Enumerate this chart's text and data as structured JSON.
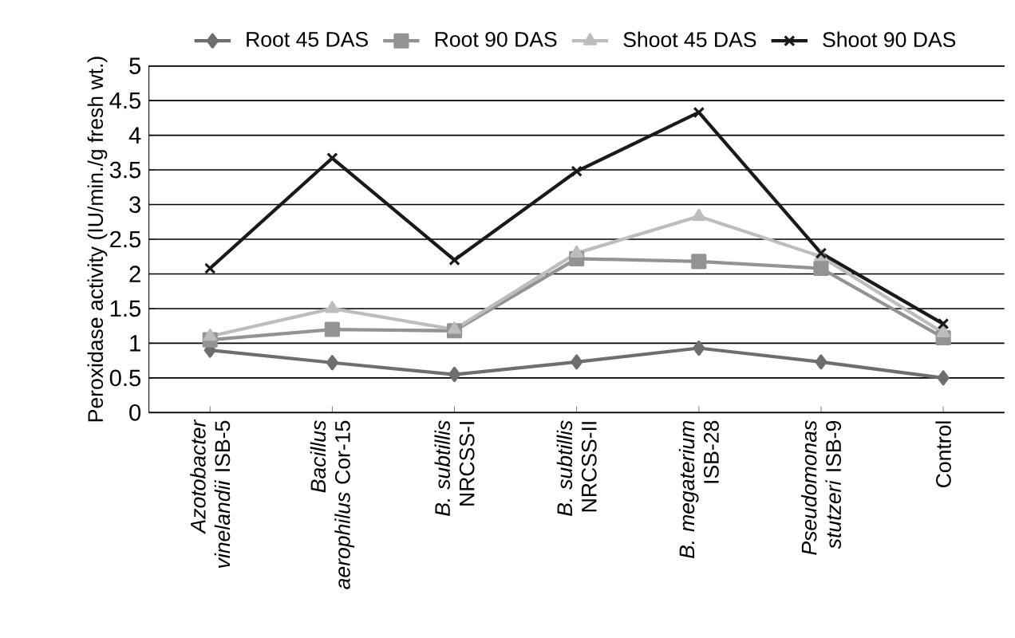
{
  "chart_data": {
    "type": "line",
    "ylabel": "Peroxidase activity (IU/min./g fresh wt.)",
    "categories": [
      "*Azotobacter vinelandii* ISB-5",
      "*Bacillus aerophilus* Cor-15",
      "*B. subtillis* NRCSS-I",
      "*B. subtillis* NRCSS-II",
      "*B. megaterium* ISB-28",
      "*Pseudomonas stutzeri* ISB-9",
      "Control"
    ],
    "series": [
      {
        "name": "Root 45 DAS",
        "color": "#6e6e6e",
        "marker": "diamond",
        "values": [
          0.9,
          0.72,
          0.55,
          0.73,
          0.93,
          0.73,
          0.5
        ]
      },
      {
        "name": "Root 90 DAS",
        "color": "#939393",
        "marker": "square",
        "values": [
          1.05,
          1.2,
          1.18,
          2.22,
          2.18,
          2.08,
          1.08
        ]
      },
      {
        "name": "Shoot 45 DAS",
        "color": "#bdbdbd",
        "marker": "triangle",
        "values": [
          1.1,
          1.5,
          1.2,
          2.3,
          2.83,
          2.25,
          1.15
        ]
      },
      {
        "name": "Shoot 90 DAS",
        "color": "#1a1a1a",
        "marker": "cross",
        "values": [
          2.08,
          3.67,
          2.2,
          3.48,
          4.33,
          2.3,
          1.28
        ]
      }
    ],
    "ylim": [
      0,
      5
    ],
    "yticks": [
      0,
      0.5,
      1,
      1.5,
      2,
      2.5,
      3,
      3.5,
      4,
      4.5,
      5
    ],
    "grid": "y",
    "legend": "top",
    "line_style": "solid"
  }
}
